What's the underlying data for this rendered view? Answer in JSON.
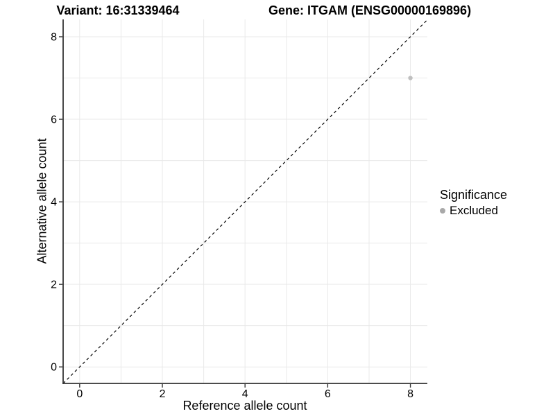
{
  "chart_data": {
    "type": "scatter",
    "title_left": "Variant: 16:31339464",
    "title_right": "Gene: ITGAM (ENSG00000169896)",
    "xlabel": "Reference allele count",
    "ylabel": "Alternative allele count",
    "xlim": [
      -0.4,
      8.41
    ],
    "ylim": [
      -0.4,
      8.42
    ],
    "xticks": [
      0,
      2,
      4,
      6,
      8
    ],
    "yticks": [
      0,
      2,
      4,
      6,
      8
    ],
    "xgrid": [
      0,
      1,
      2,
      3,
      4,
      5,
      6,
      7,
      8
    ],
    "ygrid": [
      0,
      1,
      2,
      3,
      4,
      5,
      6,
      7,
      8
    ],
    "grid": "on",
    "legend_position": "right",
    "points": [
      {
        "x": 8,
        "y": 7,
        "series": "Excluded"
      }
    ],
    "identity_line": {
      "equation": "y = x",
      "style": "dashed",
      "color": "#000000"
    },
    "legend": {
      "title": "Significance",
      "items": [
        {
          "label": "Excluded",
          "color": "#a9a9a9"
        }
      ]
    },
    "colors": {
      "point": "#bfbfbf",
      "grid": "#e9e9e9",
      "axis": "#333333",
      "tick_label": "#000000"
    }
  }
}
